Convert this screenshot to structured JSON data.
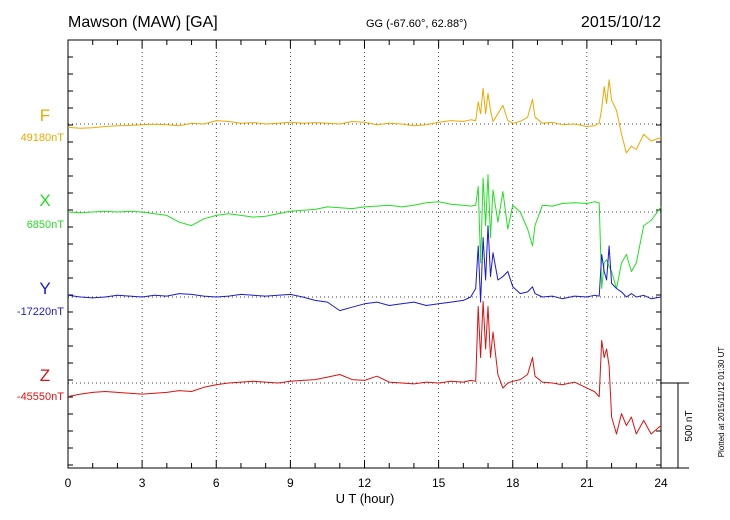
{
  "header": {
    "station": "Mawson (MAW)  [GA]",
    "coords": "GG (-67.60°,  62.88°)",
    "date": "2015/10/12"
  },
  "footer": {
    "plotted": "Plotted at 2015/11/12 01:30 UT"
  },
  "chart_data": {
    "type": "line",
    "xlabel": "U T (hour)",
    "xlim": [
      0,
      24
    ],
    "xticks": [
      "0",
      "3",
      "6",
      "9",
      "12",
      "15",
      "18",
      "21",
      "24"
    ],
    "scale_bar": "500 nT",
    "grid": true,
    "series": [
      {
        "name": "F",
        "baseline_label": "49180nT",
        "color": "#f0a800",
        "x": [
          0,
          0.5,
          1,
          1.5,
          2,
          2.5,
          3,
          3.5,
          4,
          4.5,
          5,
          5.5,
          6,
          6.5,
          7,
          7.5,
          8,
          8.5,
          9,
          9.5,
          10,
          10.5,
          11,
          11.5,
          12,
          12.5,
          13,
          13.5,
          14,
          14.5,
          15,
          15.5,
          16,
          16.3,
          16.5,
          16.6,
          16.7,
          16.8,
          16.9,
          17.0,
          17.1,
          17.2,
          17.4,
          17.6,
          17.8,
          18.0,
          18.3,
          18.6,
          18.8,
          18.9,
          19.2,
          19.6,
          20.0,
          20.5,
          21.0,
          21.3,
          21.5,
          21.6,
          21.7,
          21.8,
          21.9,
          22.0,
          22.2,
          22.4,
          22.6,
          22.8,
          23.0,
          23.3,
          23.6,
          24
        ],
        "y": [
          -20,
          -25,
          -22,
          -15,
          -10,
          -8,
          -5,
          -2,
          -5,
          -10,
          5,
          0,
          20,
          15,
          5,
          8,
          0,
          5,
          10,
          5,
          8,
          5,
          0,
          15,
          10,
          -5,
          5,
          0,
          -10,
          -5,
          10,
          20,
          15,
          25,
          20,
          130,
          60,
          210,
          60,
          180,
          80,
          15,
          60,
          110,
          20,
          5,
          15,
          40,
          145,
          40,
          5,
          10,
          -5,
          0,
          -15,
          -10,
          5,
          90,
          220,
          120,
          260,
          140,
          80,
          -60,
          -170,
          -130,
          -150,
          -60,
          -100,
          -80
        ]
      },
      {
        "name": "X",
        "baseline_label": "6850nT",
        "color": "#22e022",
        "x": [
          0,
          0.5,
          1,
          1.5,
          2,
          2.5,
          3,
          3.5,
          4,
          4.5,
          5,
          5.5,
          6,
          6.5,
          7,
          7.5,
          8,
          8.5,
          9,
          9.5,
          10,
          10.5,
          11,
          11.5,
          12,
          12.5,
          13,
          13.5,
          14,
          14.5,
          15,
          15.5,
          16,
          16.3,
          16.5,
          16.6,
          16.7,
          16.8,
          16.9,
          17.0,
          17.1,
          17.2,
          17.4,
          17.6,
          17.8,
          18.0,
          18.3,
          18.6,
          18.8,
          18.9,
          19.2,
          19.6,
          20.0,
          20.5,
          21.0,
          21.3,
          21.5,
          21.6,
          21.7,
          21.8,
          21.9,
          22.0,
          22.2,
          22.4,
          22.6,
          22.8,
          23.0,
          23.3,
          23.6,
          24
        ],
        "y": [
          0,
          -5,
          0,
          5,
          0,
          5,
          0,
          -10,
          -20,
          -60,
          -80,
          -40,
          -20,
          -10,
          -20,
          -30,
          -25,
          -10,
          5,
          10,
          15,
          30,
          25,
          20,
          30,
          35,
          40,
          30,
          40,
          55,
          60,
          45,
          40,
          35,
          40,
          150,
          -300,
          200,
          -80,
          220,
          -150,
          130,
          -60,
          120,
          -100,
          40,
          0,
          -100,
          -200,
          -80,
          40,
          35,
          50,
          55,
          50,
          60,
          55,
          -450,
          -300,
          -280,
          -320,
          -350,
          -450,
          -300,
          -250,
          -350,
          -300,
          -80,
          -50,
          30
        ]
      },
      {
        "name": "Y",
        "baseline_label": "-17220nT",
        "color": "#1a1ad8",
        "x": [
          0,
          0.5,
          1,
          1.5,
          2,
          2.5,
          3,
          3.5,
          4,
          4.5,
          5,
          5.5,
          6,
          6.5,
          7,
          7.5,
          8,
          8.5,
          9,
          9.5,
          10,
          10.5,
          11,
          11.5,
          12,
          12.5,
          13,
          13.5,
          14,
          14.5,
          15,
          15.5,
          16,
          16.3,
          16.5,
          16.6,
          16.7,
          16.8,
          16.9,
          17.0,
          17.1,
          17.2,
          17.4,
          17.6,
          17.8,
          18.0,
          18.3,
          18.6,
          18.8,
          18.9,
          19.2,
          19.6,
          20.0,
          20.5,
          21.0,
          21.3,
          21.5,
          21.6,
          21.7,
          21.8,
          21.9,
          22.0,
          22.2,
          22.4,
          22.6,
          22.8,
          23.0,
          23.3,
          23.6,
          24
        ],
        "y": [
          10,
          0,
          -5,
          0,
          10,
          5,
          0,
          10,
          5,
          20,
          15,
          5,
          0,
          5,
          15,
          10,
          5,
          10,
          15,
          0,
          -20,
          -30,
          -80,
          -60,
          -40,
          -30,
          -50,
          -40,
          -30,
          -50,
          -40,
          -30,
          -20,
          0,
          50,
          300,
          -30,
          350,
          100,
          420,
          120,
          260,
          100,
          120,
          150,
          60,
          20,
          30,
          60,
          20,
          0,
          5,
          -10,
          5,
          0,
          10,
          5,
          250,
          150,
          100,
          300,
          80,
          50,
          30,
          0,
          20,
          0,
          10,
          -10,
          0
        ]
      },
      {
        "name": "Z",
        "baseline_label": "-45550nT",
        "color": "#e01010",
        "x": [
          0,
          0.5,
          1,
          1.5,
          2,
          2.5,
          3,
          3.5,
          4,
          4.5,
          5,
          5.5,
          6,
          6.5,
          7,
          7.5,
          8,
          8.5,
          9,
          9.5,
          10,
          10.5,
          11,
          11.5,
          12,
          12.5,
          13,
          13.5,
          14,
          14.5,
          15,
          15.5,
          16,
          16.3,
          16.5,
          16.6,
          16.7,
          16.8,
          16.9,
          17.0,
          17.1,
          17.2,
          17.4,
          17.6,
          17.8,
          18.0,
          18.3,
          18.6,
          18.8,
          18.9,
          19.2,
          19.6,
          20.0,
          20.5,
          21.0,
          21.3,
          21.5,
          21.6,
          21.7,
          21.8,
          21.9,
          22.0,
          22.2,
          22.4,
          22.6,
          22.8,
          23.0,
          23.3,
          23.6,
          24
        ],
        "y": [
          -80,
          -65,
          -55,
          -50,
          -55,
          -60,
          -65,
          -60,
          -55,
          -45,
          -50,
          -25,
          -10,
          0,
          5,
          10,
          5,
          0,
          10,
          15,
          20,
          35,
          50,
          20,
          15,
          40,
          5,
          0,
          -5,
          5,
          0,
          10,
          5,
          15,
          10,
          450,
          150,
          480,
          200,
          450,
          150,
          300,
          50,
          -30,
          0,
          10,
          20,
          50,
          150,
          40,
          5,
          0,
          -10,
          5,
          -30,
          -50,
          -80,
          250,
          150,
          200,
          100,
          -200,
          -300,
          -180,
          -250,
          -200,
          -300,
          -220,
          -300,
          -250
        ]
      }
    ]
  }
}
